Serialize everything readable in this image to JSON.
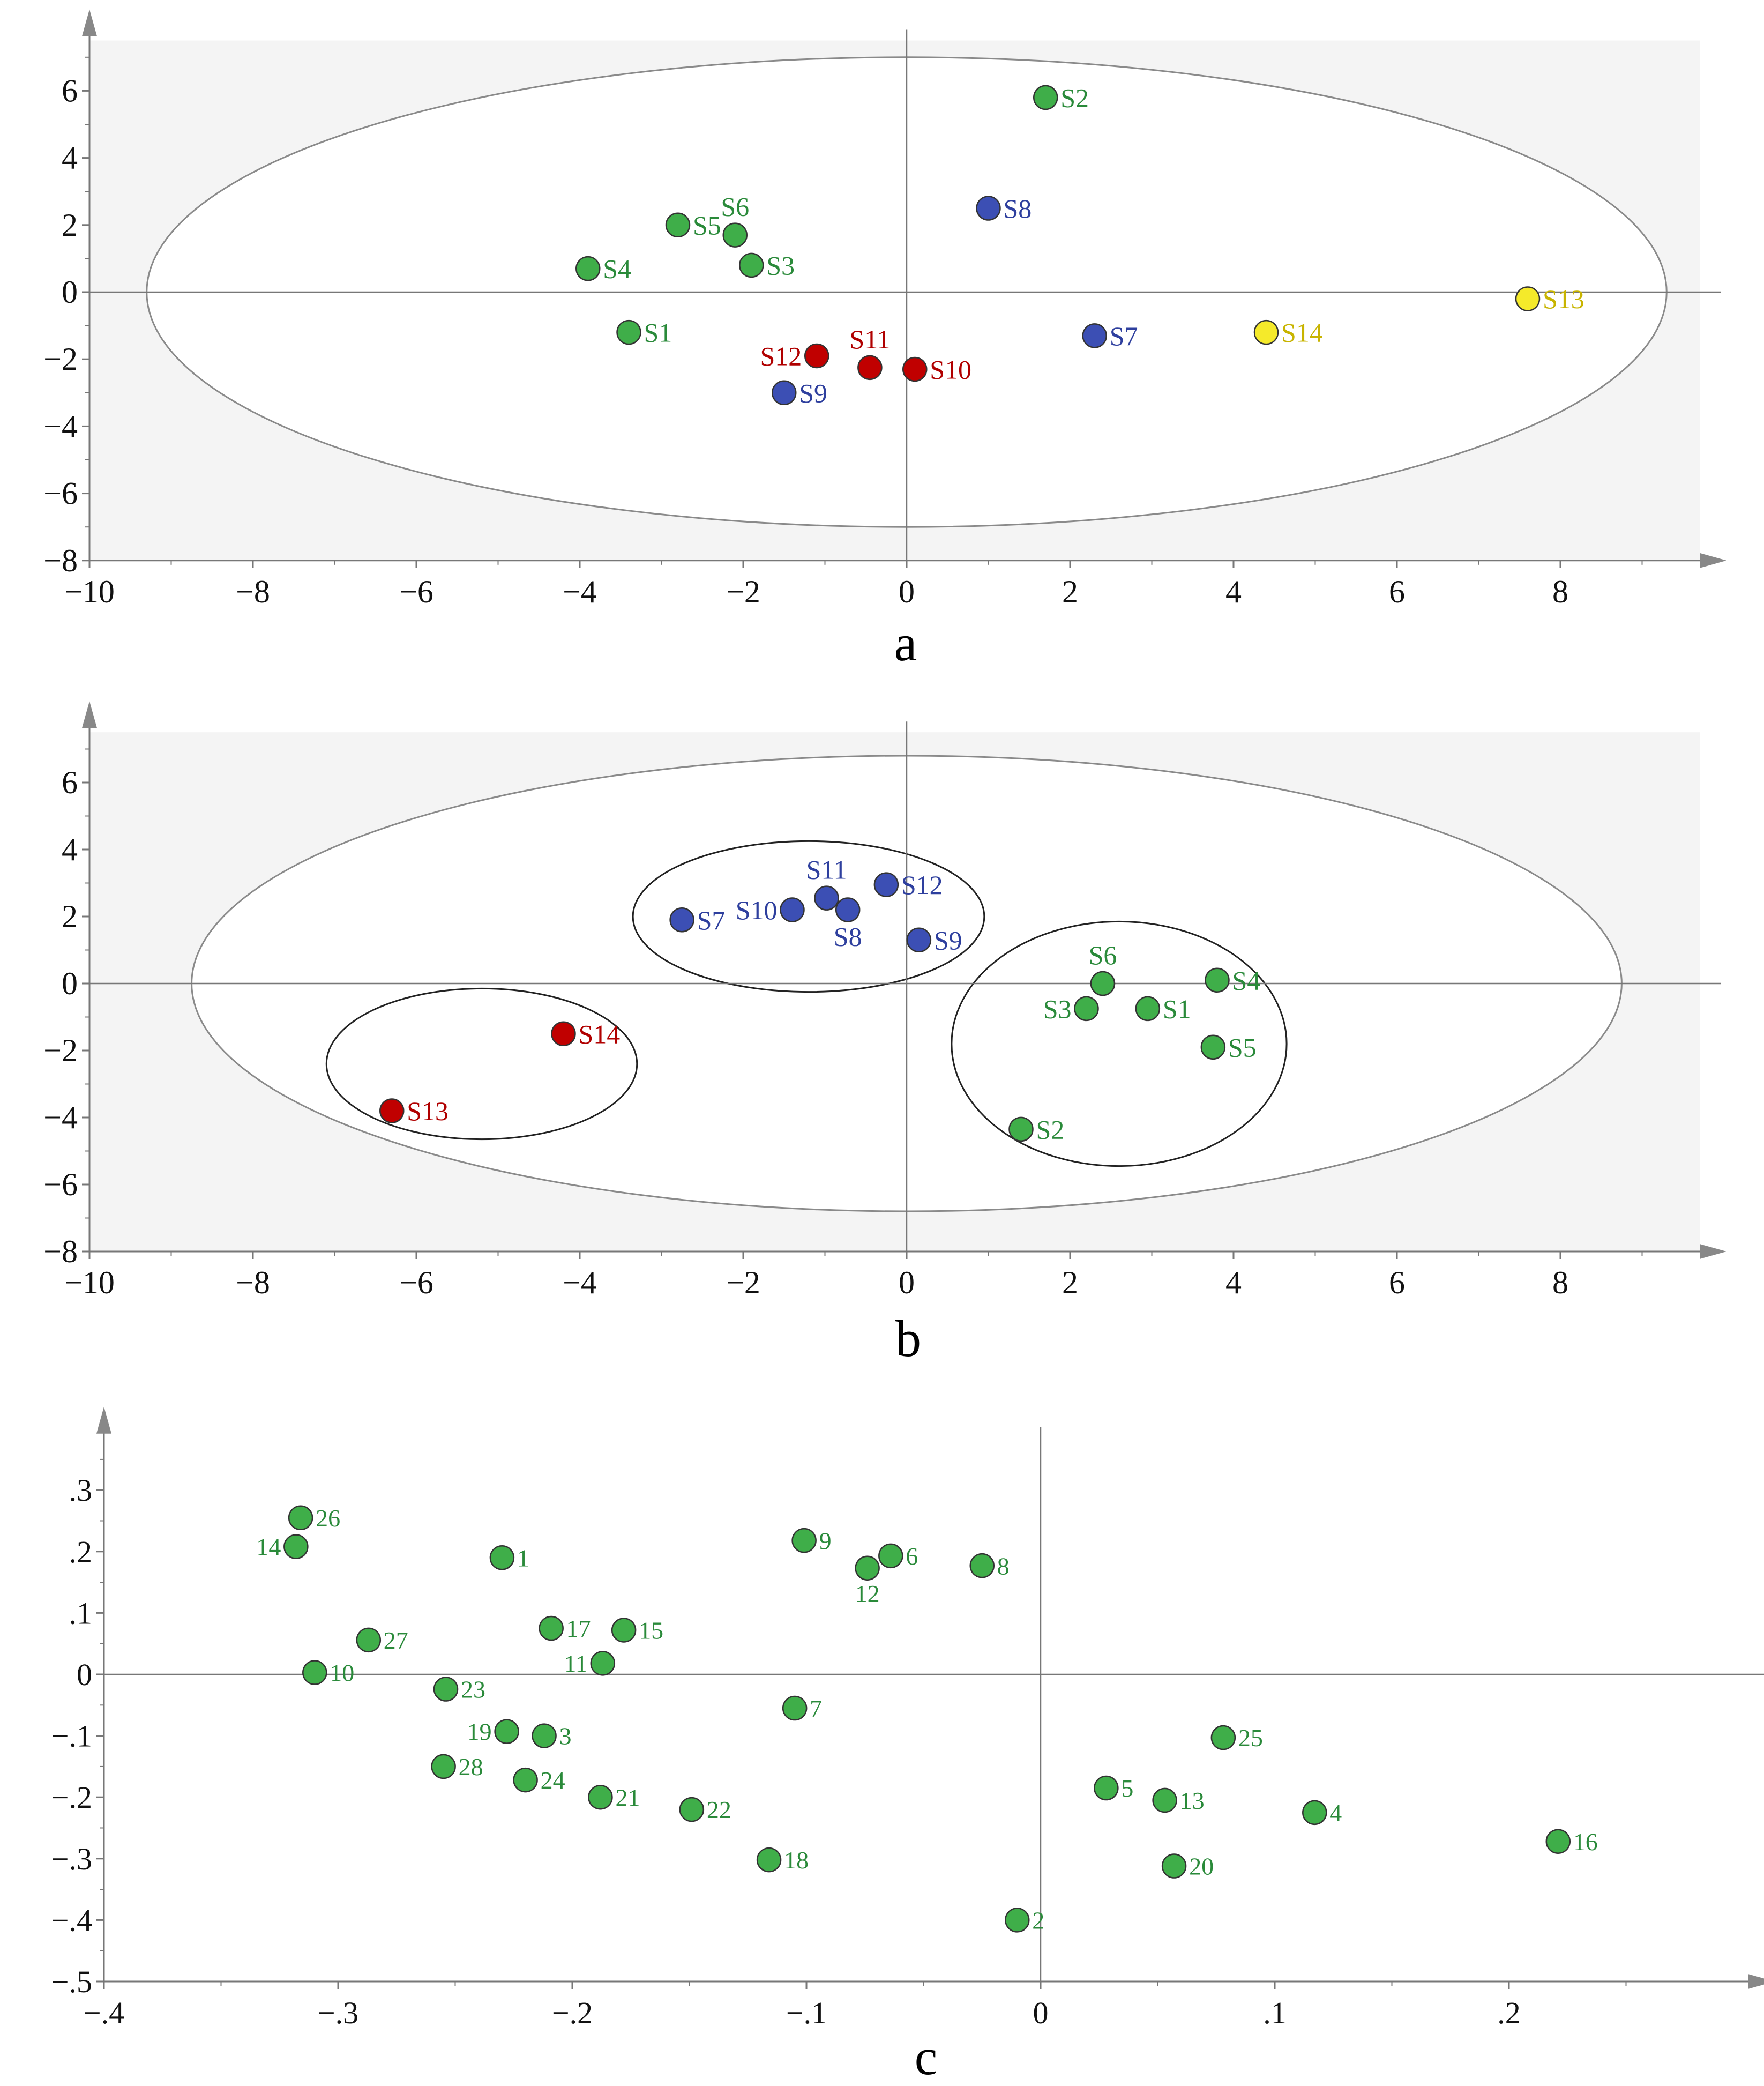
{
  "panel_labels": {
    "a": "a",
    "b": "b",
    "c": "c"
  },
  "colors": {
    "green": "#3fae49",
    "blue": "#3c4fb4",
    "red": "#c00000",
    "yellow": "#f5ea2a",
    "green_label": "#2a8a3a",
    "blue_label": "#2e3f9e",
    "red_label": "#b00000",
    "yellow_label": "#c8b400",
    "plot_bg": "#f4f4f4"
  },
  "chart_data": [
    {
      "type": "scatter",
      "panel": "a",
      "xlim": [
        -10,
        10
      ],
      "ylim": [
        -8,
        7.5
      ],
      "xticks": [
        -10,
        -8,
        -6,
        -4,
        -2,
        0,
        2,
        4,
        6,
        8
      ],
      "yticks": [
        -8,
        -6,
        -4,
        -2,
        0,
        2,
        4,
        6
      ],
      "grid": false,
      "ellipses": [
        {
          "cx": 0,
          "cy": 0,
          "rx": 9.3,
          "ry": 7.0
        }
      ],
      "points": [
        {
          "label": "S1",
          "x": -3.4,
          "y": -1.2,
          "color": "green"
        },
        {
          "label": "S2",
          "x": 1.7,
          "y": 5.8,
          "color": "green"
        },
        {
          "label": "S3",
          "x": -1.9,
          "y": 0.8,
          "color": "green"
        },
        {
          "label": "S4",
          "x": -3.9,
          "y": 0.7,
          "color": "green"
        },
        {
          "label": "S5",
          "x": -2.8,
          "y": 2.0,
          "color": "green"
        },
        {
          "label": "S6",
          "x": -2.1,
          "y": 1.7,
          "color": "green",
          "label_pos": "above"
        },
        {
          "label": "S7",
          "x": 2.3,
          "y": -1.3,
          "color": "blue"
        },
        {
          "label": "S8",
          "x": 1.0,
          "y": 2.5,
          "color": "blue"
        },
        {
          "label": "S9",
          "x": -1.5,
          "y": -3.0,
          "color": "blue"
        },
        {
          "label": "S10",
          "x": 0.1,
          "y": -2.3,
          "color": "red"
        },
        {
          "label": "S11",
          "x": -0.45,
          "y": -2.25,
          "color": "red",
          "label_pos": "above"
        },
        {
          "label": "S12",
          "x": -1.1,
          "y": -1.9,
          "color": "red",
          "label_pos": "left"
        },
        {
          "label": "S13",
          "x": 7.6,
          "y": -0.2,
          "color": "yellow"
        },
        {
          "label": "S14",
          "x": 4.4,
          "y": -1.2,
          "color": "yellow"
        }
      ]
    },
    {
      "type": "scatter",
      "panel": "b",
      "xlim": [
        -10,
        10
      ],
      "ylim": [
        -8,
        7.5
      ],
      "xticks": [
        -10,
        -8,
        -6,
        -4,
        -2,
        0,
        2,
        4,
        6,
        8
      ],
      "yticks": [
        -8,
        -6,
        -4,
        -2,
        0,
        2,
        4,
        6
      ],
      "grid": false,
      "ellipses": [
        {
          "cx": 0,
          "cy": 0,
          "rx": 8.75,
          "ry": 6.8
        },
        {
          "cx": -5.2,
          "cy": -2.4,
          "rx": 1.9,
          "ry": 2.25
        },
        {
          "cx": -1.2,
          "cy": 2.0,
          "rx": 2.15,
          "ry": 2.25
        },
        {
          "cx": 2.6,
          "cy": -1.8,
          "rx": 2.05,
          "ry": 3.65
        }
      ],
      "points": [
        {
          "label": "S1",
          "x": 2.95,
          "y": -0.75,
          "color": "green"
        },
        {
          "label": "S2",
          "x": 1.4,
          "y": -4.35,
          "color": "green"
        },
        {
          "label": "S3",
          "x": 2.2,
          "y": -0.75,
          "color": "green",
          "label_pos": "left"
        },
        {
          "label": "S4",
          "x": 3.8,
          "y": 0.1,
          "color": "green"
        },
        {
          "label": "S5",
          "x": 3.75,
          "y": -1.9,
          "color": "green"
        },
        {
          "label": "S6",
          "x": 2.4,
          "y": 0.0,
          "color": "green",
          "label_pos": "above"
        },
        {
          "label": "S7",
          "x": -2.75,
          "y": 1.9,
          "color": "blue"
        },
        {
          "label": "S8",
          "x": -0.72,
          "y": 2.2,
          "color": "blue",
          "label_pos": "below"
        },
        {
          "label": "S9",
          "x": 0.15,
          "y": 1.3,
          "color": "blue"
        },
        {
          "label": "S10",
          "x": -1.4,
          "y": 2.2,
          "color": "blue",
          "label_pos": "left"
        },
        {
          "label": "S11",
          "x": -0.98,
          "y": 2.55,
          "color": "blue",
          "label_pos": "above"
        },
        {
          "label": "S12",
          "x": -0.25,
          "y": 2.95,
          "color": "blue"
        },
        {
          "label": "S13",
          "x": -6.3,
          "y": -3.8,
          "color": "red"
        },
        {
          "label": "S14",
          "x": -4.2,
          "y": -1.5,
          "color": "red"
        }
      ]
    },
    {
      "type": "scatter",
      "panel": "c",
      "xlim": [
        -0.4,
        0.3
      ],
      "ylim": [
        -0.5,
        0.385
      ],
      "xticks": [
        -0.4,
        -0.3,
        -0.2,
        -0.1,
        0,
        0.1,
        0.2
      ],
      "yticks": [
        -0.5,
        -0.4,
        -0.3,
        -0.2,
        -0.1,
        0,
        0.1,
        0.2,
        0.3
      ],
      "grid": false,
      "ellipses": [],
      "points": [
        {
          "label": "1",
          "x": -0.23,
          "y": 0.19,
          "color": "green"
        },
        {
          "label": "2",
          "x": -0.01,
          "y": -0.4,
          "color": "green"
        },
        {
          "label": "3",
          "x": -0.212,
          "y": -0.1,
          "color": "green"
        },
        {
          "label": "4",
          "x": 0.117,
          "y": -0.225,
          "color": "green"
        },
        {
          "label": "5",
          "x": 0.028,
          "y": -0.185,
          "color": "green"
        },
        {
          "label": "6",
          "x": -0.064,
          "y": 0.193,
          "color": "green"
        },
        {
          "label": "7",
          "x": -0.105,
          "y": -0.055,
          "color": "green"
        },
        {
          "label": "8",
          "x": -0.025,
          "y": 0.177,
          "color": "green"
        },
        {
          "label": "9",
          "x": -0.101,
          "y": 0.218,
          "color": "green"
        },
        {
          "label": "10",
          "x": -0.31,
          "y": 0.003,
          "color": "green"
        },
        {
          "label": "11",
          "x": -0.187,
          "y": 0.018,
          "color": "green",
          "label_pos": "left"
        },
        {
          "label": "12",
          "x": -0.074,
          "y": 0.173,
          "color": "green",
          "label_pos": "below"
        },
        {
          "label": "13",
          "x": 0.053,
          "y": -0.205,
          "color": "green"
        },
        {
          "label": "14",
          "x": -0.318,
          "y": 0.208,
          "color": "green",
          "label_pos": "left"
        },
        {
          "label": "15",
          "x": -0.178,
          "y": 0.072,
          "color": "green"
        },
        {
          "label": "16",
          "x": 0.221,
          "y": -0.272,
          "color": "green"
        },
        {
          "label": "17",
          "x": -0.209,
          "y": 0.075,
          "color": "green"
        },
        {
          "label": "18",
          "x": -0.116,
          "y": -0.302,
          "color": "green"
        },
        {
          "label": "19",
          "x": -0.228,
          "y": -0.093,
          "color": "green",
          "label_pos": "left"
        },
        {
          "label": "20",
          "x": 0.057,
          "y": -0.312,
          "color": "green"
        },
        {
          "label": "21",
          "x": -0.188,
          "y": -0.2,
          "color": "green"
        },
        {
          "label": "22",
          "x": -0.149,
          "y": -0.22,
          "color": "green"
        },
        {
          "label": "23",
          "x": -0.254,
          "y": -0.024,
          "color": "green"
        },
        {
          "label": "24",
          "x": -0.22,
          "y": -0.172,
          "color": "green"
        },
        {
          "label": "25",
          "x": 0.078,
          "y": -0.103,
          "color": "green"
        },
        {
          "label": "26",
          "x": -0.316,
          "y": 0.255,
          "color": "green"
        },
        {
          "label": "27",
          "x": -0.287,
          "y": 0.056,
          "color": "green"
        },
        {
          "label": "28",
          "x": -0.255,
          "y": -0.15,
          "color": "green"
        }
      ]
    }
  ]
}
